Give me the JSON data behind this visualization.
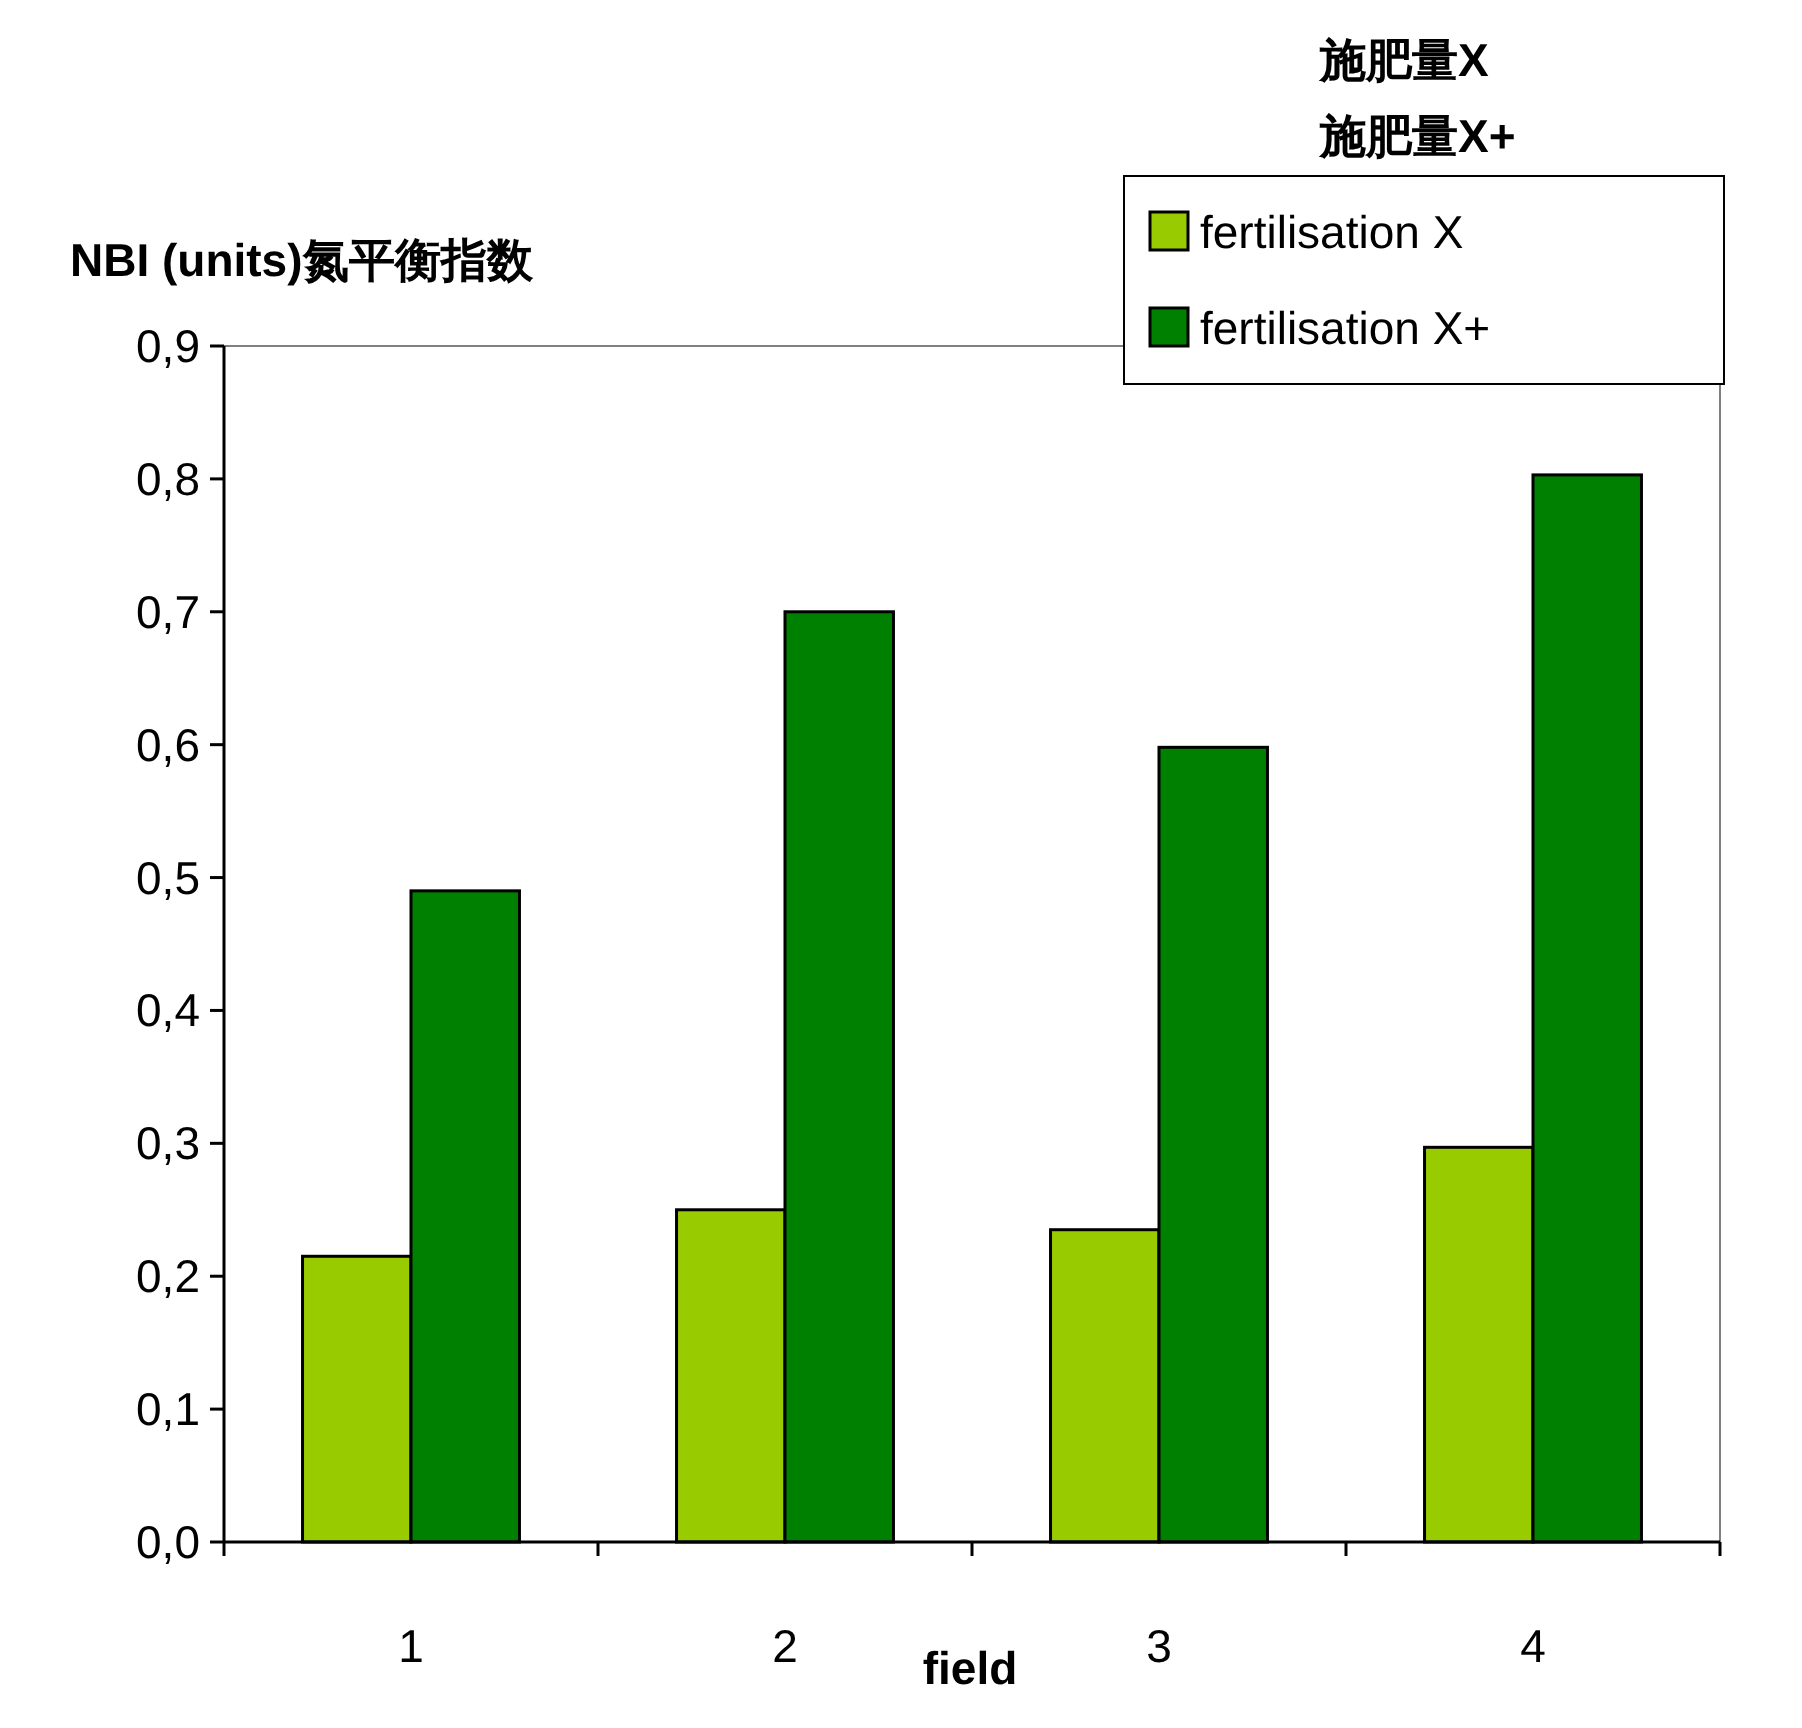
{
  "chart_data": {
    "type": "bar",
    "ylabel": "NBI (units)氮平衡指数",
    "xlabel": "field",
    "categories": [
      "1",
      "2",
      "3",
      "4"
    ],
    "series": [
      {
        "name": "fertilisation X",
        "color": "#99cc00",
        "values": [
          0.215,
          0.25,
          0.235,
          0.297
        ]
      },
      {
        "name": "fertilisation X+",
        "color": "#008000",
        "values": [
          0.49,
          0.7,
          0.598,
          0.803
        ]
      }
    ],
    "ylim": [
      0,
      0.9
    ],
    "yticks": [
      {
        "value": 0,
        "label": "0,0"
      },
      {
        "value": 0.1,
        "label": "0,1"
      },
      {
        "value": 0.2,
        "label": "0,2"
      },
      {
        "value": 0.3,
        "label": "0,3"
      },
      {
        "value": 0.4,
        "label": "0,4"
      },
      {
        "value": 0.5,
        "label": "0,5"
      },
      {
        "value": 0.6,
        "label": "0,6"
      },
      {
        "value": 0.7,
        "label": "0,7"
      },
      {
        "value": 0.8,
        "label": "0,8"
      },
      {
        "value": 0.9,
        "label": "0,9"
      }
    ],
    "annotations": [
      "施肥量X",
      "施肥量X+"
    ],
    "legend": "top right",
    "grid": false
  }
}
